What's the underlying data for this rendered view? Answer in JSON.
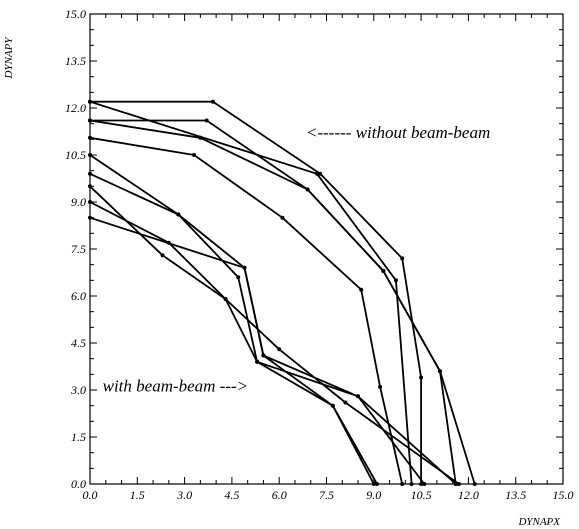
{
  "chart_data": {
    "type": "line",
    "xlabel": "DYNAPX",
    "ylabel": "DYNAPY",
    "xlim": [
      0,
      15
    ],
    "ylim": [
      0,
      15
    ],
    "xticks": [
      "0.0",
      "1.5",
      "3.0",
      "4.5",
      "6.0",
      "7.5",
      "9.0",
      "10.5",
      "12.0",
      "13.5",
      "15.0"
    ],
    "yticks": [
      "0.0",
      "1.5",
      "3.0",
      "4.5",
      "6.0",
      "7.5",
      "9.0",
      "10.5",
      "12.0",
      "13.5",
      "15.0"
    ],
    "grid": false,
    "annotations": [
      {
        "text": "<------ without beam-beam",
        "x": 6.85,
        "y": 11.05
      },
      {
        "text": "with beam-beam --->",
        "x": 0.4,
        "y": 2.95
      }
    ],
    "series": [
      {
        "points": [
          [
            0,
            12.2
          ],
          [
            3.9,
            12.2
          ],
          [
            7.3,
            9.9
          ],
          [
            9.9,
            7.2
          ],
          [
            10.5,
            3.4
          ],
          [
            10.5,
            0
          ]
        ]
      },
      {
        "points": [
          [
            0,
            11.6
          ],
          [
            3.7,
            11.6
          ],
          [
            6.9,
            9.4
          ],
          [
            9.3,
            6.8
          ],
          [
            11.1,
            3.6
          ],
          [
            11.6,
            0
          ]
        ]
      },
      {
        "points": [
          [
            0,
            12.2
          ],
          [
            7.2,
            9.9
          ],
          [
            9.7,
            6.5
          ],
          [
            10.2,
            0
          ]
        ]
      },
      {
        "points": [
          [
            0,
            11.6
          ],
          [
            3.5,
            11.05
          ],
          [
            6.9,
            9.4
          ],
          [
            9.3,
            6.8
          ],
          [
            11.1,
            3.6
          ],
          [
            12.2,
            0
          ]
        ]
      },
      {
        "points": [
          [
            0,
            11.05
          ],
          [
            3.3,
            10.5
          ],
          [
            6.1,
            8.5
          ],
          [
            8.6,
            6.2
          ],
          [
            9.2,
            3.1
          ],
          [
            9.9,
            0
          ]
        ]
      },
      {
        "points": [
          [
            0,
            10.5
          ],
          [
            2.8,
            8.6
          ],
          [
            4.9,
            6.9
          ],
          [
            5.5,
            4.1
          ],
          [
            7.7,
            2.5
          ],
          [
            9.1,
            0
          ]
        ]
      },
      {
        "points": [
          [
            0,
            9.9
          ],
          [
            2.8,
            8.6
          ],
          [
            4.7,
            6.6
          ],
          [
            5.3,
            3.9
          ],
          [
            7.7,
            2.5
          ],
          [
            9.0,
            0
          ]
        ]
      },
      {
        "points": [
          [
            0,
            9.5
          ],
          [
            2.3,
            7.3
          ],
          [
            4.3,
            5.9
          ],
          [
            5.3,
            3.9
          ],
          [
            8.5,
            2.8
          ],
          [
            11.6,
            0
          ]
        ]
      },
      {
        "points": [
          [
            0,
            9.0
          ],
          [
            2.5,
            7.7
          ],
          [
            4.3,
            5.9
          ],
          [
            6.0,
            4.3
          ],
          [
            8.1,
            2.6
          ],
          [
            11.7,
            0
          ]
        ]
      },
      {
        "points": [
          [
            0,
            8.5
          ],
          [
            4.9,
            6.9
          ],
          [
            5.5,
            4.1
          ],
          [
            8.5,
            2.8
          ],
          [
            10.6,
            0
          ]
        ]
      }
    ]
  }
}
